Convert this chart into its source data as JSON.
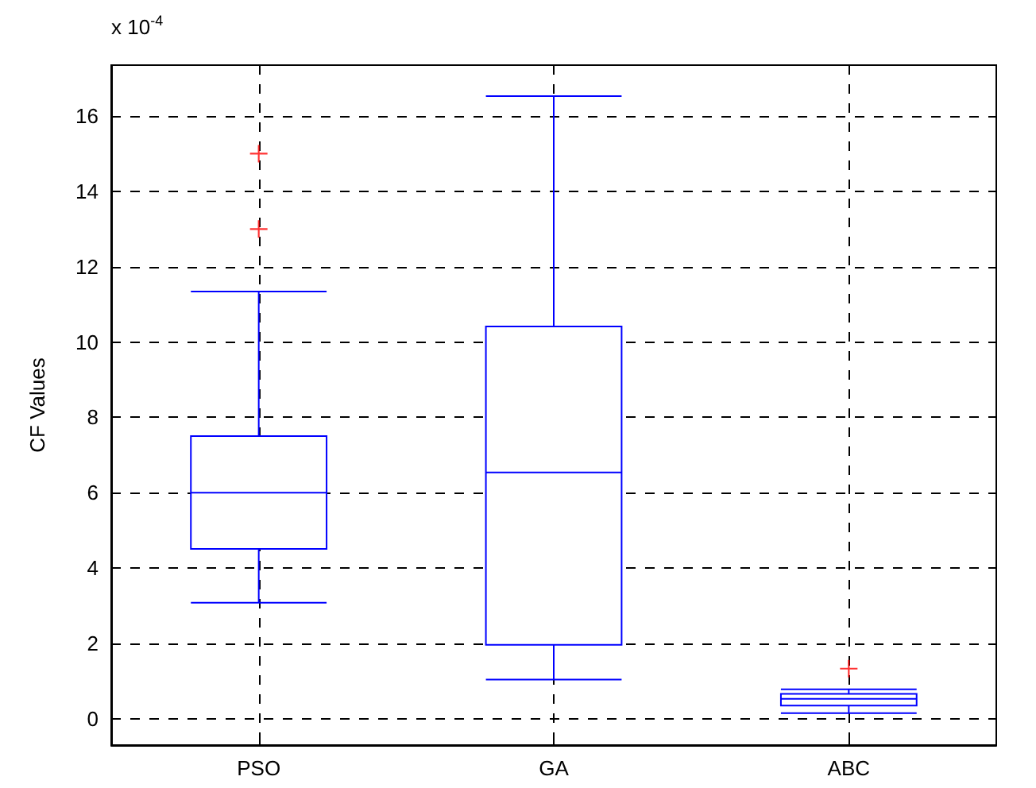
{
  "chart_data": {
    "type": "box",
    "categories": [
      "PSO",
      "GA",
      "ABC"
    ],
    "ylabel": "CF Values",
    "annotations": [
      "x 10$^{-4}$"
    ],
    "ylim": [
      -0.7,
      17.35
    ],
    "yticks": [
      0,
      2,
      4,
      6,
      8,
      10,
      12,
      14,
      16
    ],
    "grid": true,
    "marker": "cross",
    "series": [
      {
        "color": "#0000ff",
        "boxes": [
          {
            "low": 3.08,
            "q1": 4.51,
            "median": 6,
            "q3": 7.5,
            "high": 11.34,
            "outliers": [
              13,
              15
            ]
          },
          {
            "low": 1.04,
            "q1": 1.96,
            "median": 6.54,
            "q3": 10.41,
            "high": 16.53
          },
          {
            "low": 0.15,
            "q1": 0.35,
            "median": 0.53,
            "q3": 0.66,
            "high": 0.78,
            "outliers": [
              1.33
            ]
          }
        ]
      }
    ]
  }
}
